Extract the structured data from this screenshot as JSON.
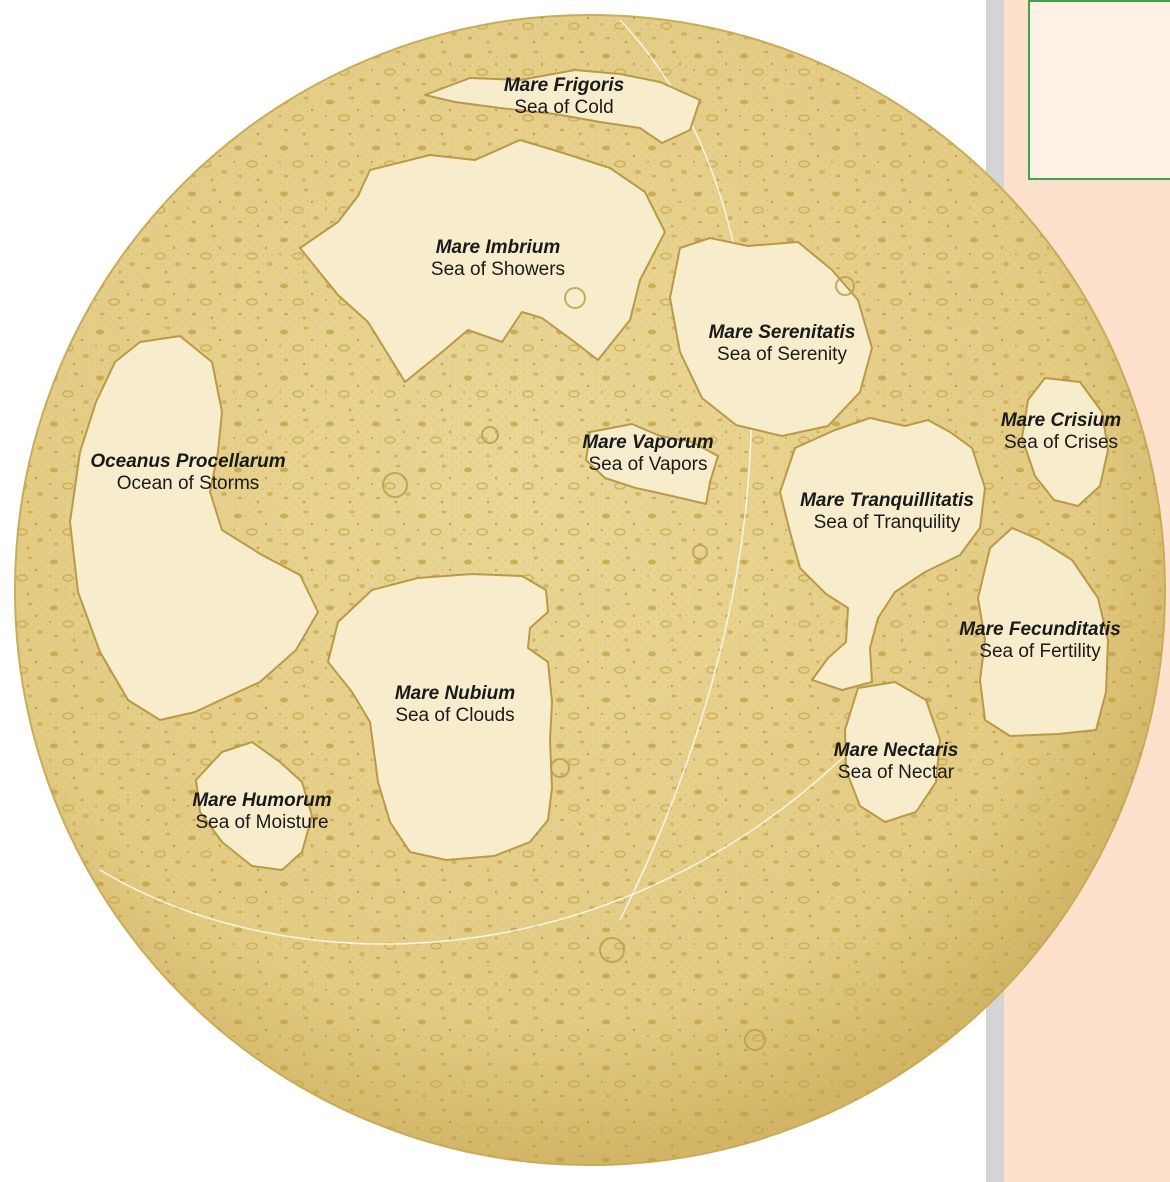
{
  "colors": {
    "moon_fill": "#e6d08c",
    "moon_edge": "#c9ac58",
    "highland_texture": "#c29d3c",
    "mare_fill": "#f7edcc",
    "mare_edge": "#b89a48",
    "panel_bg": "#fde1cc",
    "inset_border": "#3fa34d",
    "label_text": "#1a1a1a"
  },
  "maria": [
    {
      "latin": "Mare Frigoris",
      "english": "Sea of Cold"
    },
    {
      "latin": "Mare Imbrium",
      "english": "Sea of Showers"
    },
    {
      "latin": "Mare Serenitatis",
      "english": "Sea of Serenity"
    },
    {
      "latin": "Mare Crisium",
      "english": "Sea of Crises"
    },
    {
      "latin": "Oceanus Procellarum",
      "english": "Ocean of Storms"
    },
    {
      "latin": "Mare Vaporum",
      "english": "Sea of Vapors"
    },
    {
      "latin": "Mare Tranquillitatis",
      "english": "Sea of Tranquility"
    },
    {
      "latin": "Mare Fecunditatis",
      "english": "Sea of Fertility"
    },
    {
      "latin": "Mare Nubium",
      "english": "Sea of Clouds"
    },
    {
      "latin": "Mare Nectaris",
      "english": "Sea of Nectar"
    },
    {
      "latin": "Mare Humorum",
      "english": "Sea of Moisture"
    }
  ]
}
